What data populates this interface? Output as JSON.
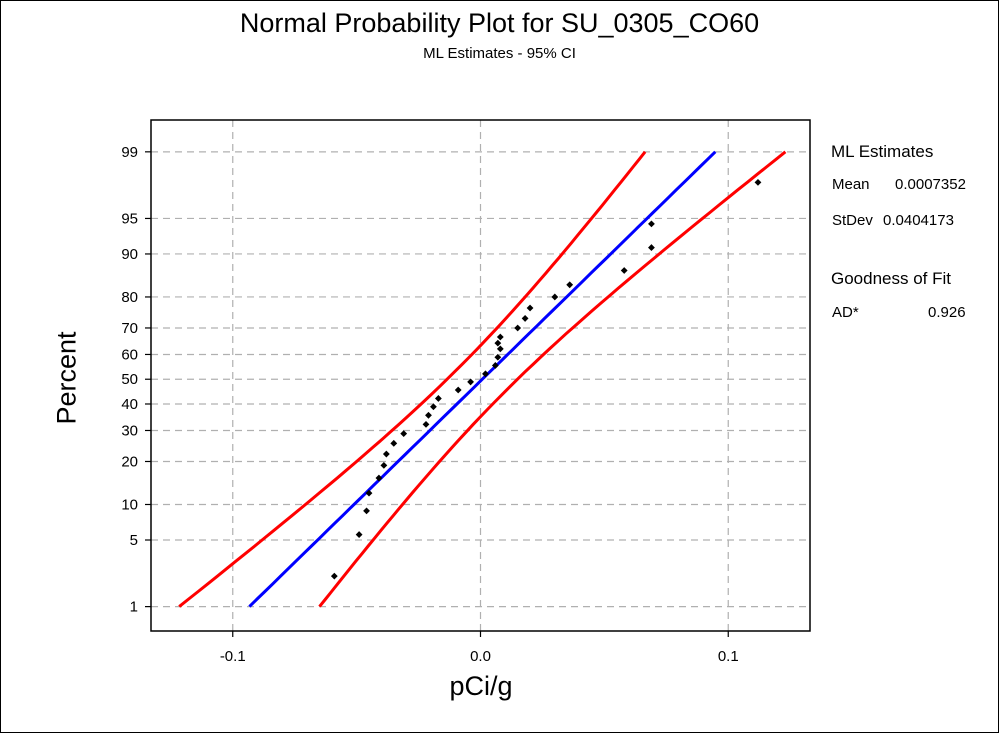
{
  "chart_data": {
    "type": "scatter",
    "title": "Normal Probability Plot for SU_0305_CO60",
    "subtitle": "ML Estimates - 95% CI",
    "xlabel": "pCi/g",
    "ylabel": "Percent",
    "xlim": [
      -0.133,
      0.133
    ],
    "ylim_percent": [
      0.5,
      99.6
    ],
    "y_scale": "normal-probability",
    "grid": true,
    "x_ticks": [
      {
        "value": -0.1,
        "label": "-0.1"
      },
      {
        "value": 0.0,
        "label": "0.0"
      },
      {
        "value": 0.1,
        "label": "0.1"
      }
    ],
    "y_ticks": [
      {
        "value": 1,
        "label": "1"
      },
      {
        "value": 5,
        "label": "5"
      },
      {
        "value": 10,
        "label": "10"
      },
      {
        "value": 20,
        "label": "20"
      },
      {
        "value": 30,
        "label": "30"
      },
      {
        "value": 40,
        "label": "40"
      },
      {
        "value": 50,
        "label": "50"
      },
      {
        "value": 60,
        "label": "60"
      },
      {
        "value": 70,
        "label": "70"
      },
      {
        "value": 80,
        "label": "80"
      },
      {
        "value": 90,
        "label": "90"
      },
      {
        "value": 95,
        "label": "95"
      },
      {
        "value": 99,
        "label": "99"
      }
    ],
    "fit_line": {
      "color": "#0000ff",
      "percent_range": [
        1,
        99
      ]
    },
    "ci_bands": {
      "color": "#ff0000",
      "half_width": 0.0285,
      "spread_factor": 0.55
    },
    "points": [
      {
        "x": -0.059,
        "p": 2.2
      },
      {
        "x": -0.049,
        "p": 5.6
      },
      {
        "x": -0.046,
        "p": 8.9
      },
      {
        "x": -0.045,
        "p": 12.2
      },
      {
        "x": -0.041,
        "p": 15.6
      },
      {
        "x": -0.039,
        "p": 18.9
      },
      {
        "x": -0.038,
        "p": 22.2
      },
      {
        "x": -0.035,
        "p": 25.6
      },
      {
        "x": -0.031,
        "p": 28.9
      },
      {
        "x": -0.022,
        "p": 32.2
      },
      {
        "x": -0.021,
        "p": 35.6
      },
      {
        "x": -0.019,
        "p": 38.9
      },
      {
        "x": -0.017,
        "p": 42.2
      },
      {
        "x": -0.009,
        "p": 45.6
      },
      {
        "x": -0.004,
        "p": 48.9
      },
      {
        "x": 0.002,
        "p": 52.2
      },
      {
        "x": 0.006,
        "p": 55.6
      },
      {
        "x": 0.007,
        "p": 58.9
      },
      {
        "x": 0.008,
        "p": 62.2
      },
      {
        "x": 0.007,
        "p": 64.4
      },
      {
        "x": 0.008,
        "p": 66.7
      },
      {
        "x": 0.015,
        "p": 70.0
      },
      {
        "x": 0.018,
        "p": 73.3
      },
      {
        "x": 0.02,
        "p": 76.7
      },
      {
        "x": 0.03,
        "p": 80.0
      },
      {
        "x": 0.036,
        "p": 83.3
      },
      {
        "x": 0.058,
        "p": 86.7
      },
      {
        "x": 0.069,
        "p": 91.1
      },
      {
        "x": 0.069,
        "p": 94.4
      },
      {
        "x": 0.112,
        "p": 97.8
      }
    ],
    "estimates": {
      "heading": "ML Estimates",
      "mean_label": "Mean",
      "mean_value": "0.0007352",
      "stdev_label": "StDev",
      "stdev_value": "0.0404173"
    },
    "goodness_of_fit": {
      "heading": "Goodness of Fit",
      "ad_label": "AD*",
      "ad_value": "0.926"
    },
    "colors": {
      "ci": "#ff0000",
      "fit": "#0000ff",
      "points": "#000000",
      "grid": "#b0b0b0"
    }
  }
}
